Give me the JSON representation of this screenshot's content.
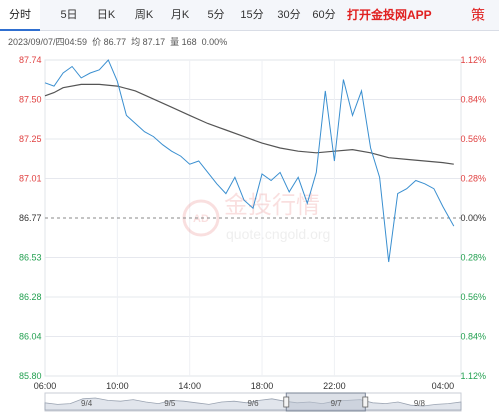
{
  "tabs": [
    {
      "label": "分时",
      "active": true
    },
    {
      "label": "5日",
      "active": false
    },
    {
      "label": "日K",
      "active": false
    },
    {
      "label": "周K",
      "active": false
    },
    {
      "label": "月K",
      "active": false
    },
    {
      "label": "5分",
      "active": false
    },
    {
      "label": "15分",
      "active": false
    },
    {
      "label": "30分",
      "active": false
    },
    {
      "label": "60分",
      "active": false
    }
  ],
  "app_link": "打开金投网APP",
  "app_icon_glyph": "策",
  "info": {
    "datetime": "2023/09/07/四04:59",
    "price": "价 86.77",
    "avg": "均 87.17",
    "volume": "量 168",
    "change": "0.00%"
  },
  "watermark": {
    "badge": "AD",
    "brand": "金投行情",
    "url": "quote.cngold.org"
  },
  "colors": {
    "up": "#e04040",
    "down": "#22a050",
    "price_line": "#3a8fd0",
    "avg_line": "#555555",
    "flat": "#333333"
  },
  "chart_data": {
    "type": "line",
    "ylim": [
      85.8,
      87.74
    ],
    "reference_price": 86.77,
    "y_ticks": [
      "87.74",
      "87.50",
      "87.25",
      "87.01",
      "86.77",
      "86.53",
      "86.28",
      "86.04",
      "85.80"
    ],
    "pct_ticks": [
      "1.12%",
      "0.84%",
      "0.56%",
      "0.28%",
      "0.00%",
      "0.28%",
      "0.56%",
      "0.84%",
      "1.12%"
    ],
    "x_ticks": [
      "06:00",
      "10:00",
      "14:00",
      "18:00",
      "22:00",
      "04:00"
    ],
    "x_tick_hours": [
      0,
      4,
      8,
      12,
      16,
      22
    ],
    "session_hours": 23,
    "series": [
      {
        "name": "价",
        "role": "price",
        "x": [
          0,
          0.5,
          1,
          1.5,
          2,
          2.5,
          3,
          3.5,
          4,
          4.5,
          5,
          5.5,
          6,
          6.5,
          7,
          7.5,
          8,
          8.5,
          9,
          9.5,
          10,
          10.5,
          11,
          11.5,
          12,
          12.5,
          13,
          13.5,
          14,
          14.5,
          15,
          15.5,
          16,
          16.5,
          17,
          17.5,
          18,
          18.5,
          19,
          19.5,
          20,
          20.5,
          21,
          21.5,
          22,
          22.6
        ],
        "values": [
          87.6,
          87.58,
          87.66,
          87.7,
          87.63,
          87.66,
          87.68,
          87.74,
          87.61,
          87.4,
          87.35,
          87.3,
          87.27,
          87.22,
          87.18,
          87.15,
          87.1,
          87.12,
          87.05,
          86.98,
          86.92,
          87.02,
          86.88,
          86.83,
          87.04,
          87.0,
          87.05,
          86.93,
          87.02,
          86.86,
          87.05,
          87.55,
          87.12,
          87.62,
          87.4,
          87.55,
          87.2,
          87.02,
          86.5,
          86.92,
          86.95,
          87.0,
          86.98,
          86.95,
          86.84,
          86.72
        ]
      },
      {
        "name": "均",
        "role": "average",
        "x": [
          0,
          0.5,
          1,
          2,
          3,
          4,
          5,
          6,
          7,
          8,
          9,
          10,
          11,
          12,
          13,
          14,
          15,
          16,
          17,
          18,
          19,
          20,
          21,
          22,
          22.6
        ],
        "values": [
          87.52,
          87.54,
          87.57,
          87.59,
          87.59,
          87.58,
          87.55,
          87.5,
          87.45,
          87.4,
          87.35,
          87.31,
          87.27,
          87.23,
          87.2,
          87.18,
          87.17,
          87.18,
          87.19,
          87.17,
          87.14,
          87.13,
          87.12,
          87.11,
          87.1
        ]
      }
    ]
  },
  "navigator": {
    "dates": [
      "9/4",
      "9/5",
      "9/6",
      "9/7",
      "9/8"
    ],
    "values": [
      0.45,
      0.35,
      0.4,
      0.7,
      0.75,
      0.6,
      0.55,
      0.65,
      0.5,
      0.4,
      0.6,
      0.55,
      0.45,
      0.35,
      0.5,
      0.55,
      0.45,
      0.6,
      0.7,
      0.55,
      0.45,
      0.5,
      0.4,
      0.55,
      0.6,
      0.65,
      0.45,
      0.4,
      0.5,
      0.3,
      0.25,
      0.35,
      0.4,
      0.5
    ],
    "selected_range": [
      0.58,
      0.77
    ]
  }
}
